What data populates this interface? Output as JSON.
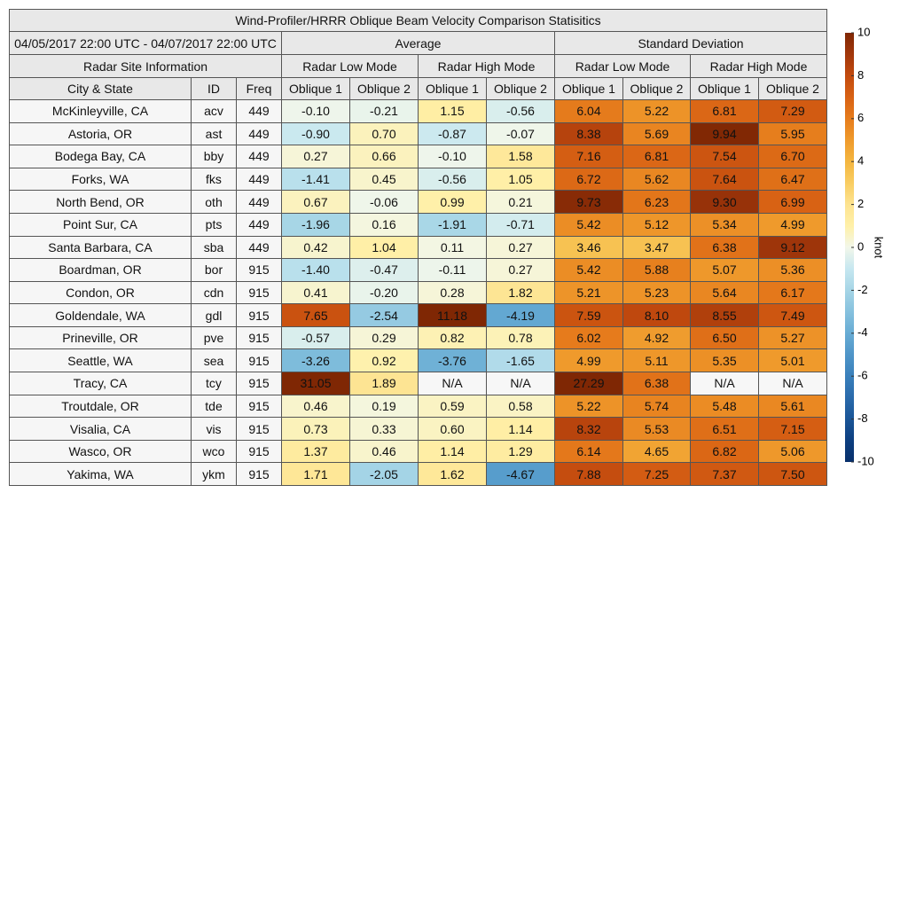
{
  "title": "Wind-Profiler/HRRR Oblique Beam Velocity Comparison Statisitics",
  "date_range": "04/05/2017 22:00 UTC - 04/07/2017 22:00 UTC",
  "groups": [
    "Average",
    "Standard Deviation"
  ],
  "site_header": "Radar Site Information",
  "modes": [
    "Radar Low Mode",
    "Radar High Mode",
    "Radar Low Mode",
    "Radar High Mode"
  ],
  "columns": [
    "City & State",
    "ID",
    "Freq",
    "Oblique 1",
    "Oblique 2",
    "Oblique 1",
    "Oblique 2",
    "Oblique 1",
    "Oblique 2",
    "Oblique 1",
    "Oblique 2"
  ],
  "rows": [
    [
      "McKinleyville, CA",
      "acv",
      "449",
      "-0.10",
      "-0.21",
      "1.15",
      "-0.56",
      "6.04",
      "5.22",
      "6.81",
      "7.29"
    ],
    [
      "Astoria, OR",
      "ast",
      "449",
      "-0.90",
      "0.70",
      "-0.87",
      "-0.07",
      "8.38",
      "5.69",
      "9.94",
      "5.95"
    ],
    [
      "Bodega Bay, CA",
      "bby",
      "449",
      "0.27",
      "0.66",
      "-0.10",
      "1.58",
      "7.16",
      "6.81",
      "7.54",
      "6.70"
    ],
    [
      "Forks, WA",
      "fks",
      "449",
      "-1.41",
      "0.45",
      "-0.56",
      "1.05",
      "6.72",
      "5.62",
      "7.64",
      "6.47"
    ],
    [
      "North Bend, OR",
      "oth",
      "449",
      "0.67",
      "-0.06",
      "0.99",
      "0.21",
      "9.73",
      "6.23",
      "9.30",
      "6.99"
    ],
    [
      "Point Sur, CA",
      "pts",
      "449",
      "-1.96",
      "0.16",
      "-1.91",
      "-0.71",
      "5.42",
      "5.12",
      "5.34",
      "4.99"
    ],
    [
      "Santa Barbara, CA",
      "sba",
      "449",
      "0.42",
      "1.04",
      "0.11",
      "0.27",
      "3.46",
      "3.47",
      "6.38",
      "9.12"
    ],
    [
      "Boardman, OR",
      "bor",
      "915",
      "-1.40",
      "-0.47",
      "-0.11",
      "0.27",
      "5.42",
      "5.88",
      "5.07",
      "5.36"
    ],
    [
      "Condon, OR",
      "cdn",
      "915",
      "0.41",
      "-0.20",
      "0.28",
      "1.82",
      "5.21",
      "5.23",
      "5.64",
      "6.17"
    ],
    [
      "Goldendale, WA",
      "gdl",
      "915",
      "7.65",
      "-2.54",
      "11.18",
      "-4.19",
      "7.59",
      "8.10",
      "8.55",
      "7.49"
    ],
    [
      "Prineville, OR",
      "pve",
      "915",
      "-0.57",
      "0.29",
      "0.82",
      "0.78",
      "6.02",
      "4.92",
      "6.50",
      "5.27"
    ],
    [
      "Seattle, WA",
      "sea",
      "915",
      "-3.26",
      "0.92",
      "-3.76",
      "-1.65",
      "4.99",
      "5.11",
      "5.35",
      "5.01"
    ],
    [
      "Tracy, CA",
      "tcy",
      "915",
      "31.05",
      "1.89",
      "N/A",
      "N/A",
      "27.29",
      "6.38",
      "N/A",
      "N/A"
    ],
    [
      "Troutdale, OR",
      "tde",
      "915",
      "0.46",
      "0.19",
      "0.59",
      "0.58",
      "5.22",
      "5.74",
      "5.48",
      "5.61"
    ],
    [
      "Visalia, CA",
      "vis",
      "915",
      "0.73",
      "0.33",
      "0.60",
      "1.14",
      "8.32",
      "5.53",
      "6.51",
      "7.15"
    ],
    [
      "Wasco, OR",
      "wco",
      "915",
      "1.37",
      "0.46",
      "1.14",
      "1.29",
      "6.14",
      "4.65",
      "6.82",
      "5.06"
    ],
    [
      "Yakima, WA",
      "ykm",
      "915",
      "1.71",
      "-2.05",
      "1.62",
      "-4.67",
      "7.88",
      "7.25",
      "7.37",
      "7.50"
    ]
  ],
  "colorbar": {
    "label": "knot",
    "lim": [
      -10,
      10
    ],
    "ticks": [
      -10,
      -8,
      -6,
      -4,
      -2,
      0,
      2,
      4,
      6,
      8,
      10
    ],
    "colors": [
      "#08306b",
      "#0d3f80",
      "#1a5597",
      "#2a6aab",
      "#3a80bb",
      "#4f95c8",
      "#68acd4",
      "#86c1de",
      "#a6d5e6",
      "#c6e7f0",
      "#f2f7ea",
      "#fff0a8",
      "#fde390",
      "#f9cd62",
      "#f4b640",
      "#ef9a2c",
      "#e67c1c",
      "#d86214",
      "#c24a0e",
      "#a2370b",
      "#7f2704"
    ],
    "missing_color": "#f7f7f7"
  }
}
